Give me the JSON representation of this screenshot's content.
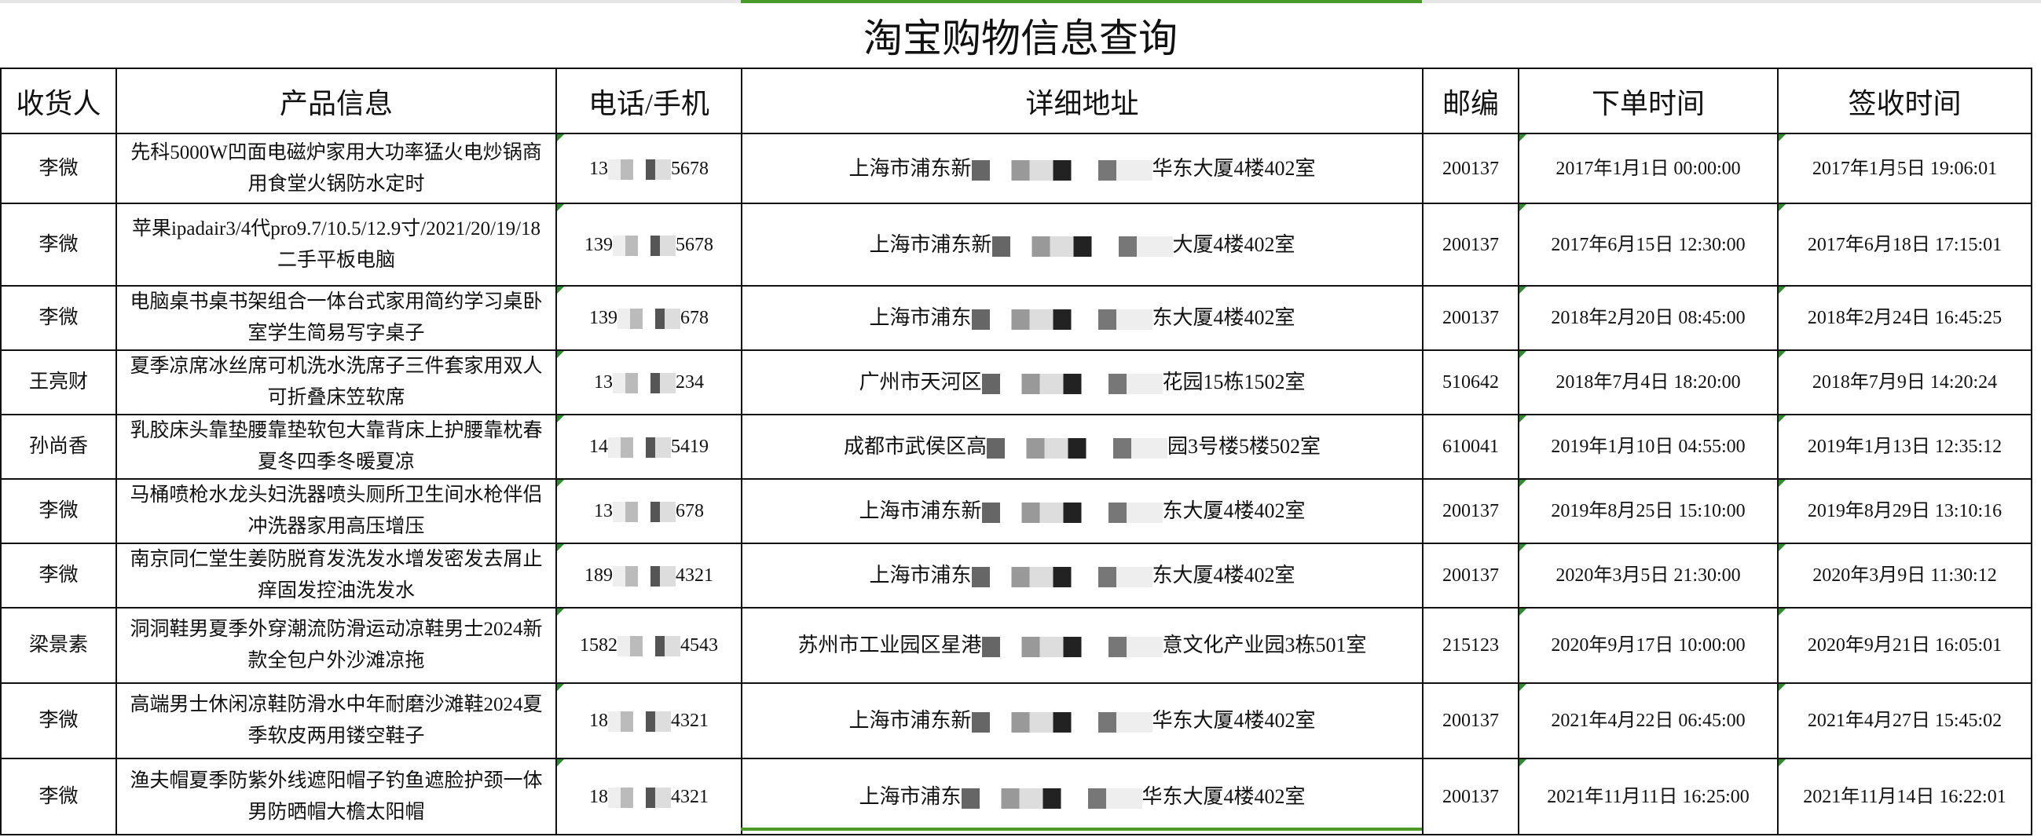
{
  "title": "淘宝购物信息查询",
  "headers": [
    "收货人",
    "产品信息",
    "电话/手机",
    "详细地址",
    "邮编",
    "下单时间",
    "签收时间"
  ],
  "colors": {
    "selection": "#4a9a2a",
    "comment_marker": "#2e8b2e"
  },
  "rows": [
    {
      "name": "李微",
      "product": "先科5000W凹面电磁炉家用大功率猛火电炒锅商用食堂火锅防水定时",
      "phone_start": "13",
      "phone_end": "5678",
      "addr_start": "上海市浦东新",
      "addr_end": "华东大厦4楼402室",
      "zip": "200137",
      "order_time": "2017年1月1日 00:00:00",
      "sign_time": "2017年1月5日 19:06:01"
    },
    {
      "name": "李微",
      "product": "苹果ipadair3/4代pro9.7/10.5/12.9寸/2021/20/19/18二手平板电脑",
      "phone_start": "139",
      "phone_end": "5678",
      "addr_start": "上海市浦东新",
      "addr_end": "大厦4楼402室",
      "zip": "200137",
      "order_time": "2017年6月15日 12:30:00",
      "sign_time": "2017年6月18日 17:15:01"
    },
    {
      "name": "李微",
      "product": "电脑桌书桌书架组合一体台式家用简约学习桌卧室学生简易写字桌子",
      "phone_start": "139",
      "phone_end": "678",
      "addr_start": "上海市浦东",
      "addr_end": "东大厦4楼402室",
      "zip": "200137",
      "order_time": "2018年2月20日 08:45:00",
      "sign_time": "2018年2月24日 16:45:25"
    },
    {
      "name": "王亮财",
      "product": "夏季凉席冰丝席可机洗水洗席子三件套家用双人可折叠床笠软席",
      "phone_start": "13",
      "phone_end": "234",
      "addr_start": "广州市天河区",
      "addr_end": "花园15栋1502室",
      "zip": "510642",
      "order_time": "2018年7月4日 18:20:00",
      "sign_time": "2018年7月9日 14:20:24"
    },
    {
      "name": "孙尚香",
      "product": "乳胶床头靠垫腰靠垫软包大靠背床上护腰靠枕春夏冬四季冬暖夏凉",
      "phone_start": "14",
      "phone_end": "5419",
      "addr_start": "成都市武侯区高",
      "addr_end": "园3号楼5楼502室",
      "zip": "610041",
      "order_time": "2019年1月10日 04:55:00",
      "sign_time": "2019年1月13日 12:35:12"
    },
    {
      "name": "李微",
      "product": "马桶喷枪水龙头妇洗器喷头厕所卫生间水枪伴侣冲洗器家用高压增压",
      "phone_start": "13",
      "phone_end": "678",
      "addr_start": "上海市浦东新",
      "addr_end": "东大厦4楼402室",
      "zip": "200137",
      "order_time": "2019年8月25日 15:10:00",
      "sign_time": "2019年8月29日 13:10:16"
    },
    {
      "name": "李微",
      "product": "南京同仁堂生姜防脱育发洗发水增发密发去屑止痒固发控油洗发水",
      "phone_start": "189",
      "phone_end": "4321",
      "addr_start": "上海市浦东",
      "addr_end": "东大厦4楼402室",
      "zip": "200137",
      "order_time": "2020年3月5日 21:30:00",
      "sign_time": "2020年3月9日 11:30:12"
    },
    {
      "name": "梁景素",
      "product": "洞洞鞋男夏季外穿潮流防滑运动凉鞋男士2024新款全包户外沙滩凉拖",
      "phone_start": "1582",
      "phone_end": "4543",
      "addr_start": "苏州市工业园区星港",
      "addr_end": "意文化产业园3栋501室",
      "zip": "215123",
      "order_time": "2020年9月17日 10:00:00",
      "sign_time": "2020年9月21日 16:05:01"
    },
    {
      "name": "李微",
      "product": "高端男士休闲凉鞋防滑水中年耐磨沙滩鞋2024夏季软皮两用镂空鞋子",
      "phone_start": "18",
      "phone_end": "4321",
      "addr_start": "上海市浦东新",
      "addr_end": "华东大厦4楼402室",
      "zip": "200137",
      "order_time": "2021年4月22日 06:45:00",
      "sign_time": "2021年4月27日 15:45:02"
    },
    {
      "name": "李微",
      "product": "渔夫帽夏季防紫外线遮阳帽子钓鱼遮脸护颈一体男防晒帽大檐太阳帽",
      "phone_start": "18",
      "phone_end": "4321",
      "addr_start": "上海市浦东",
      "addr_end": "华东大厦4楼402室",
      "zip": "200137",
      "order_time": "2021年11月11日 16:25:00",
      "sign_time": "2021年11月14日 16:22:01"
    }
  ]
}
